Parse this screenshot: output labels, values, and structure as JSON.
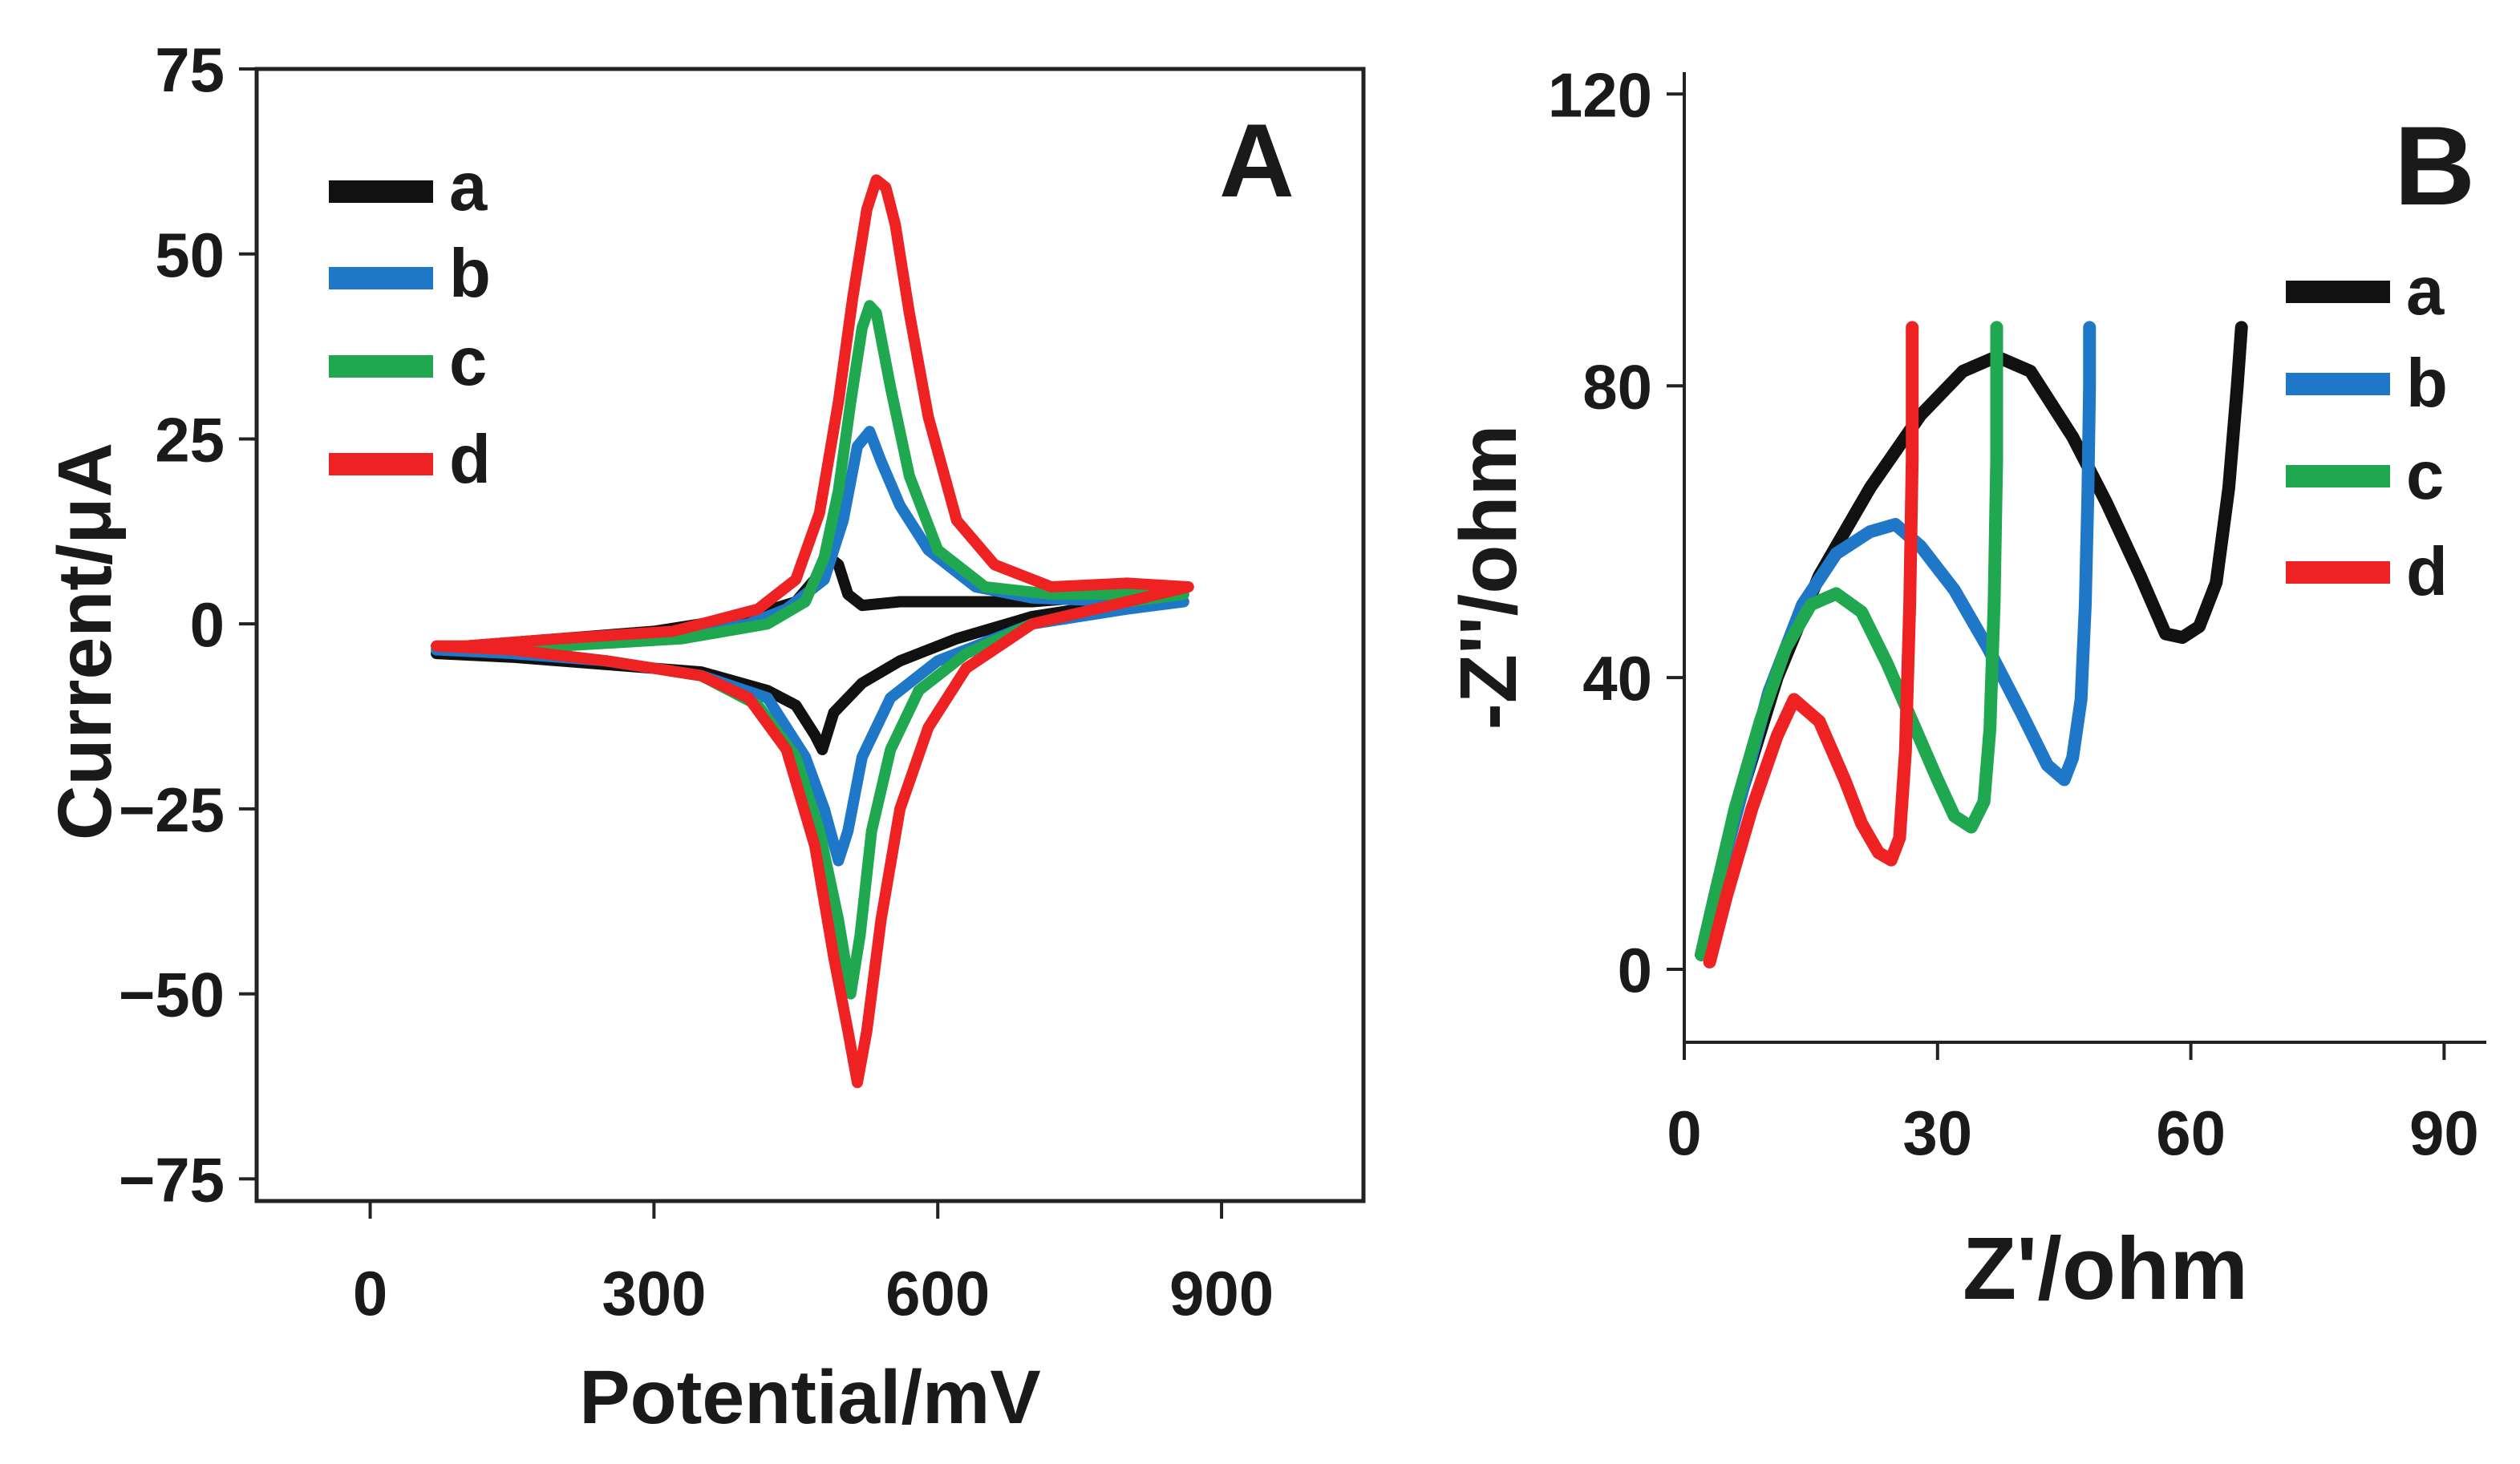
{
  "colors": {
    "a": "#111111",
    "b": "#1f77c8",
    "c": "#1fa84f",
    "d": "#ee2222"
  },
  "chart_data": [
    {
      "type": "line",
      "panel_label": "A",
      "xlabel": "Potential/mV",
      "ylabel": "Current/μA",
      "xlim": [
        -120,
        1050
      ],
      "ylim": [
        -78,
        75
      ],
      "xticks": [
        0,
        300,
        600,
        900
      ],
      "yticks": [
        -75,
        -50,
        -25,
        0,
        25,
        50,
        75
      ],
      "xtick_labels": [
        "0",
        "300",
        "600",
        "900"
      ],
      "ytick_labels": [
        "−75",
        "−50",
        "−25",
        "0",
        "25",
        "50",
        "75"
      ],
      "grid": false,
      "legend_position": "top-left",
      "series": [
        {
          "name": "a",
          "color_key": "a",
          "points": [
            [
              70,
              -4
            ],
            [
              150,
              -4.5
            ],
            [
              250,
              -5.5
            ],
            [
              350,
              -6.5
            ],
            [
              420,
              -9
            ],
            [
              450,
              -11
            ],
            [
              470,
              -15
            ],
            [
              478,
              -17
            ],
            [
              490,
              -12
            ],
            [
              520,
              -8
            ],
            [
              560,
              -5
            ],
            [
              620,
              -2
            ],
            [
              700,
              1
            ],
            [
              800,
              3
            ],
            [
              860,
              4.5
            ],
            [
              800,
              4
            ],
            [
              700,
              3
            ],
            [
              620,
              3
            ],
            [
              560,
              3
            ],
            [
              520,
              2.5
            ],
            [
              505,
              4
            ],
            [
              495,
              8
            ],
            [
              485,
              9
            ],
            [
              470,
              6
            ],
            [
              450,
              3
            ],
            [
              400,
              1
            ],
            [
              300,
              -1
            ],
            [
              200,
              -2
            ],
            [
              100,
              -3
            ],
            [
              70,
              -4
            ]
          ]
        },
        {
          "name": "b",
          "color_key": "b",
          "points": [
            [
              70,
              -3.5
            ],
            [
              150,
              -4
            ],
            [
              250,
              -5
            ],
            [
              350,
              -7
            ],
            [
              420,
              -10
            ],
            [
              460,
              -18
            ],
            [
              480,
              -25
            ],
            [
              495,
              -32
            ],
            [
              505,
              -28
            ],
            [
              520,
              -18
            ],
            [
              550,
              -10
            ],
            [
              600,
              -5
            ],
            [
              700,
              0
            ],
            [
              800,
              2
            ],
            [
              860,
              3
            ],
            [
              800,
              3
            ],
            [
              700,
              3.5
            ],
            [
              640,
              5
            ],
            [
              590,
              10
            ],
            [
              560,
              16
            ],
            [
              540,
              22
            ],
            [
              528,
              26
            ],
            [
              515,
              24
            ],
            [
              500,
              14
            ],
            [
              480,
              6
            ],
            [
              440,
              2
            ],
            [
              400,
              0
            ],
            [
              300,
              -2
            ],
            [
              200,
              -3
            ],
            [
              100,
              -3.5
            ],
            [
              70,
              -3.5
            ]
          ]
        },
        {
          "name": "c",
          "color_key": "c",
          "points": [
            [
              70,
              -3
            ],
            [
              150,
              -3.5
            ],
            [
              250,
              -5
            ],
            [
              350,
              -7
            ],
            [
              410,
              -11
            ],
            [
              450,
              -18
            ],
            [
              475,
              -28
            ],
            [
              495,
              -40
            ],
            [
              508,
              -50
            ],
            [
              518,
              -42
            ],
            [
              530,
              -28
            ],
            [
              550,
              -17
            ],
            [
              580,
              -9
            ],
            [
              630,
              -4
            ],
            [
              700,
              0
            ],
            [
              800,
              3
            ],
            [
              860,
              4
            ],
            [
              800,
              4
            ],
            [
              720,
              4
            ],
            [
              650,
              5
            ],
            [
              600,
              10
            ],
            [
              570,
              20
            ],
            [
              550,
              32
            ],
            [
              535,
              42
            ],
            [
              528,
              43
            ],
            [
              520,
              40
            ],
            [
              508,
              30
            ],
            [
              495,
              18
            ],
            [
              480,
              9
            ],
            [
              460,
              3
            ],
            [
              420,
              0
            ],
            [
              330,
              -2
            ],
            [
              200,
              -3
            ],
            [
              100,
              -3
            ],
            [
              70,
              -3
            ]
          ]
        },
        {
          "name": "d",
          "color_key": "d",
          "points": [
            [
              70,
              -3
            ],
            [
              150,
              -3.5
            ],
            [
              250,
              -5
            ],
            [
              350,
              -7
            ],
            [
              400,
              -10
            ],
            [
              440,
              -17
            ],
            [
              470,
              -30
            ],
            [
              490,
              -45
            ],
            [
              505,
              -55
            ],
            [
              515,
              -62
            ],
            [
              525,
              -55
            ],
            [
              540,
              -40
            ],
            [
              560,
              -25
            ],
            [
              590,
              -14
            ],
            [
              630,
              -6
            ],
            [
              700,
              0
            ],
            [
              800,
              3
            ],
            [
              865,
              5
            ],
            [
              800,
              5.5
            ],
            [
              720,
              5
            ],
            [
              660,
              8
            ],
            [
              620,
              14
            ],
            [
              590,
              28
            ],
            [
              570,
              42
            ],
            [
              555,
              54
            ],
            [
              545,
              59
            ],
            [
              535,
              60
            ],
            [
              525,
              56
            ],
            [
              510,
              44
            ],
            [
              495,
              30
            ],
            [
              475,
              15
            ],
            [
              450,
              6
            ],
            [
              410,
              2
            ],
            [
              320,
              -1
            ],
            [
              200,
              -2
            ],
            [
              100,
              -3
            ],
            [
              70,
              -3
            ]
          ]
        }
      ]
    },
    {
      "type": "line",
      "panel_label": "B",
      "xlabel": "Z'/ohm",
      "ylabel": "-Z''/ohm",
      "xlim": [
        0,
        95
      ],
      "ylim": [
        -10,
        123
      ],
      "xticks": [
        0,
        30,
        60,
        90
      ],
      "yticks": [
        0,
        40,
        80,
        120
      ],
      "xtick_labels": [
        "0",
        "30",
        "60",
        "90"
      ],
      "ytick_labels": [
        "0",
        "40",
        "80",
        "120"
      ],
      "grid": false,
      "legend_position": "right",
      "series": [
        {
          "name": "a",
          "color_key": "a",
          "points": [
            [
              2,
              2
            ],
            [
              4,
              12
            ],
            [
              7,
              25
            ],
            [
              11,
              40
            ],
            [
              16,
              54
            ],
            [
              22,
              66
            ],
            [
              28,
              76
            ],
            [
              33,
              82
            ],
            [
              37,
              84
            ],
            [
              41,
              82
            ],
            [
              46,
              73
            ],
            [
              50,
              64
            ],
            [
              54,
              54
            ],
            [
              57,
              46
            ],
            [
              59,
              45.5
            ],
            [
              61,
              47
            ],
            [
              63,
              53
            ],
            [
              64.5,
              66
            ],
            [
              65.5,
              80
            ],
            [
              66,
              88
            ]
          ]
        },
        {
          "name": "b",
          "color_key": "b",
          "points": [
            [
              2,
              2
            ],
            [
              4,
              12
            ],
            [
              7,
              25
            ],
            [
              10,
              38
            ],
            [
              14,
              50
            ],
            [
              18,
              57
            ],
            [
              22,
              60
            ],
            [
              25,
              61
            ],
            [
              28,
              58
            ],
            [
              32,
              52
            ],
            [
              36,
              44
            ],
            [
              40,
              35
            ],
            [
              43,
              28
            ],
            [
              45,
              26
            ],
            [
              46,
              29
            ],
            [
              47,
              37
            ],
            [
              47.5,
              50
            ],
            [
              47.8,
              65
            ],
            [
              48,
              80
            ],
            [
              48,
              88
            ]
          ]
        },
        {
          "name": "c",
          "color_key": "c",
          "points": [
            [
              2,
              2
            ],
            [
              4,
              12
            ],
            [
              6,
              22
            ],
            [
              9,
              34
            ],
            [
              12,
              44
            ],
            [
              15,
              50
            ],
            [
              18,
              51.5
            ],
            [
              21,
              49
            ],
            [
              24,
              42
            ],
            [
              27,
              34
            ],
            [
              30,
              26
            ],
            [
              32,
              21
            ],
            [
              34,
              19.5
            ],
            [
              35.5,
              23
            ],
            [
              36.2,
              33
            ],
            [
              36.7,
              50
            ],
            [
              37,
              70
            ],
            [
              37,
              88
            ]
          ]
        },
        {
          "name": "d",
          "color_key": "d",
          "points": [
            [
              3,
              1
            ],
            [
              5,
              10
            ],
            [
              8,
              22
            ],
            [
              11,
              32
            ],
            [
              13,
              37
            ],
            [
              16,
              34
            ],
            [
              19,
              26
            ],
            [
              21,
              20
            ],
            [
              23,
              16
            ],
            [
              24.5,
              15
            ],
            [
              25.5,
              18
            ],
            [
              26.2,
              30
            ],
            [
              26.7,
              50
            ],
            [
              27,
              70
            ],
            [
              27,
              88
            ]
          ]
        }
      ]
    }
  ]
}
